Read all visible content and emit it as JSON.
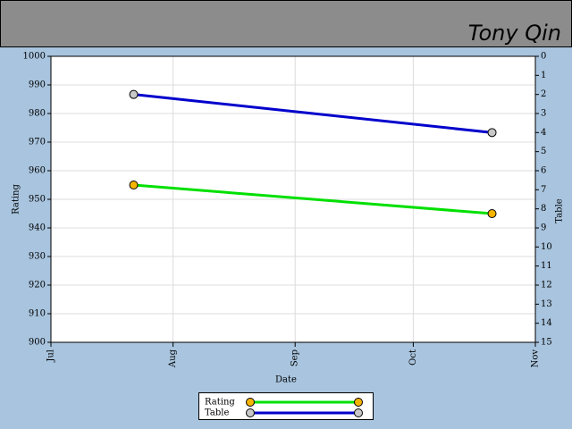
{
  "chart_data": {
    "type": "line",
    "header": "Tony Qin",
    "x_label": "Date",
    "y_label": "Rating",
    "y2_label": "Table",
    "xlim": [
      0,
      123
    ],
    "xticks": [
      {
        "value": 0,
        "label": "Jul"
      },
      {
        "value": 31,
        "label": "Aug"
      },
      {
        "value": 62,
        "label": "Sep"
      },
      {
        "value": 92,
        "label": "Oct"
      },
      {
        "value": 123,
        "label": "Nov"
      }
    ],
    "ylim": [
      900,
      1000
    ],
    "yticks": [
      900,
      910,
      920,
      930,
      940,
      950,
      960,
      970,
      980,
      990,
      1000
    ],
    "y2lim": [
      15,
      0
    ],
    "y2ticks": [
      0,
      1,
      2,
      3,
      4,
      5,
      6,
      7,
      8,
      9,
      10,
      11,
      12,
      13,
      14,
      15
    ],
    "grid": true,
    "series": [
      {
        "name": "Rating",
        "color": "#00e000",
        "marker_color": "#f5b400",
        "x": [
          21,
          112
        ],
        "values": [
          955,
          945
        ]
      },
      {
        "name": "Table",
        "color": "#0000cc",
        "marker_color": "#c8c8c8",
        "axis": "y2",
        "x": [
          21,
          112
        ],
        "values": [
          2,
          4
        ]
      }
    ]
  }
}
